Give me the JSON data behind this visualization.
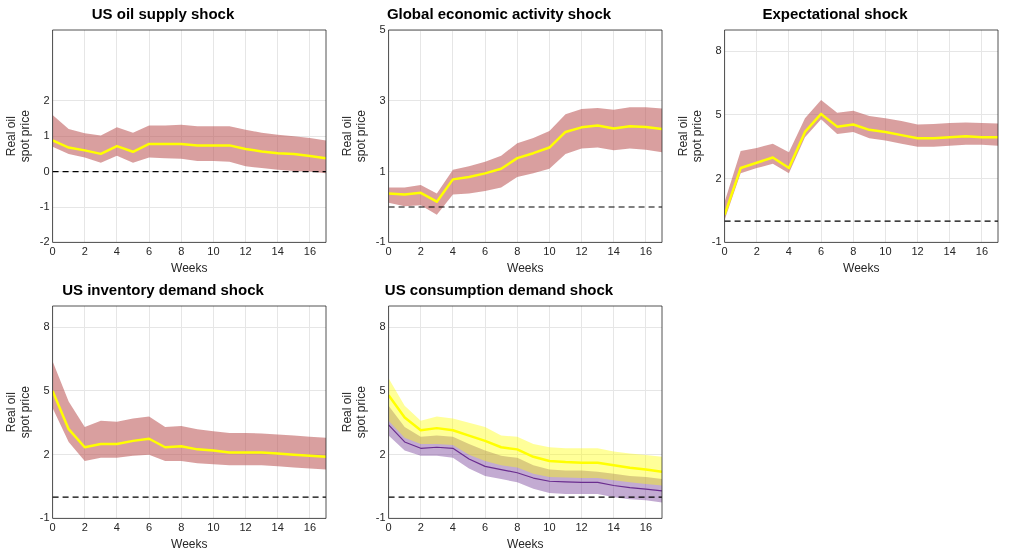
{
  "chart_data": [
    {
      "type": "line",
      "title": "US oil supply shock",
      "xlabel": "Weeks",
      "ylabel": "Real oil\nspot price",
      "x": [
        0,
        1,
        2,
        3,
        4,
        5,
        6,
        7,
        8,
        9,
        10,
        11,
        12,
        13,
        14,
        15,
        16,
        17
      ],
      "xlim": [
        0,
        17
      ],
      "xticks": [
        0,
        2,
        4,
        6,
        8,
        10,
        12,
        14,
        16
      ],
      "ylim": [
        -2,
        4
      ],
      "yticks": [
        -2,
        -1,
        0,
        1,
        2
      ],
      "grid": true,
      "marker": "none",
      "ref_lines": [
        {
          "axis": "y",
          "value": 0,
          "line_style": "dashed",
          "color": "#000000"
        }
      ],
      "series": [
        {
          "color": "#ffff00",
          "values": [
            0.88,
            0.68,
            0.6,
            0.5,
            0.72,
            0.56,
            0.78,
            0.78,
            0.78,
            0.74,
            0.74,
            0.74,
            0.64,
            0.57,
            0.52,
            0.5,
            0.44,
            0.38
          ],
          "lower": [
            0.7,
            0.5,
            0.4,
            0.25,
            0.45,
            0.25,
            0.4,
            0.38,
            0.36,
            0.3,
            0.3,
            0.28,
            0.15,
            0.1,
            0.05,
            0.02,
            0.0,
            -0.05
          ],
          "upper": [
            1.6,
            1.2,
            1.08,
            1.02,
            1.25,
            1.1,
            1.3,
            1.3,
            1.32,
            1.28,
            1.28,
            1.28,
            1.18,
            1.1,
            1.04,
            1.0,
            0.95,
            0.88
          ]
        }
      ]
    },
    {
      "type": "line",
      "title": "Global economic activity shock",
      "xlabel": "Weeks",
      "ylabel": "Real oil\nspot price",
      "x": [
        0,
        1,
        2,
        3,
        4,
        5,
        6,
        7,
        8,
        9,
        10,
        11,
        12,
        13,
        14,
        15,
        16,
        17
      ],
      "xlim": [
        0,
        17
      ],
      "xticks": [
        0,
        2,
        4,
        6,
        8,
        10,
        12,
        14,
        16
      ],
      "ylim": [
        -1,
        5
      ],
      "yticks": [
        -1,
        1,
        3,
        5
      ],
      "grid": true,
      "marker": "none",
      "ref_lines": [
        {
          "axis": "y",
          "value": 0,
          "line_style": "dashed",
          "color": "#000000"
        }
      ],
      "series": [
        {
          "color": "#ffff00",
          "values": [
            0.38,
            0.35,
            0.4,
            0.15,
            0.78,
            0.85,
            0.95,
            1.08,
            1.38,
            1.52,
            1.68,
            2.12,
            2.25,
            2.3,
            2.22,
            2.28,
            2.26,
            2.2
          ],
          "lower": [
            0.12,
            0.02,
            0.05,
            -0.22,
            0.35,
            0.38,
            0.45,
            0.55,
            0.85,
            0.95,
            1.08,
            1.5,
            1.65,
            1.68,
            1.6,
            1.65,
            1.62,
            1.55
          ],
          "upper": [
            0.55,
            0.55,
            0.62,
            0.38,
            1.05,
            1.15,
            1.28,
            1.45,
            1.8,
            1.95,
            2.15,
            2.62,
            2.77,
            2.8,
            2.75,
            2.82,
            2.82,
            2.78
          ]
        }
      ]
    },
    {
      "type": "line",
      "title": "Expectational shock",
      "xlabel": "Weeks",
      "ylabel": "Real oil\nspot price",
      "x": [
        0,
        1,
        2,
        3,
        4,
        5,
        6,
        7,
        8,
        9,
        10,
        11,
        12,
        13,
        14,
        15,
        16,
        17
      ],
      "xlim": [
        0,
        17
      ],
      "xticks": [
        0,
        2,
        4,
        6,
        8,
        10,
        12,
        14,
        16
      ],
      "ylim": [
        -1,
        9
      ],
      "yticks": [
        -1,
        2,
        5,
        8
      ],
      "grid": true,
      "marker": "none",
      "ref_lines": [
        {
          "axis": "y",
          "value": 0,
          "line_style": "dashed",
          "color": "#000000"
        }
      ],
      "series": [
        {
          "color": "#ffff00",
          "values": [
            0.3,
            2.5,
            2.75,
            3.0,
            2.5,
            4.2,
            5.05,
            4.45,
            4.55,
            4.3,
            4.2,
            4.05,
            3.9,
            3.9,
            3.95,
            4.0,
            3.95,
            3.95
          ],
          "lower": [
            0.05,
            2.25,
            2.5,
            2.7,
            2.25,
            3.95,
            4.8,
            4.1,
            4.2,
            3.9,
            3.8,
            3.65,
            3.5,
            3.5,
            3.55,
            3.6,
            3.6,
            3.55
          ],
          "upper": [
            0.9,
            3.3,
            3.45,
            3.65,
            3.25,
            4.85,
            5.7,
            5.1,
            5.2,
            4.95,
            4.85,
            4.72,
            4.55,
            4.58,
            4.62,
            4.65,
            4.62,
            4.6
          ]
        }
      ]
    },
    {
      "type": "line",
      "title": "US inventory demand shock",
      "xlabel": "Weeks",
      "ylabel": "Real oil\nspot price",
      "x": [
        0,
        1,
        2,
        3,
        4,
        5,
        6,
        7,
        8,
        9,
        10,
        11,
        12,
        13,
        14,
        15,
        16,
        17
      ],
      "xlim": [
        0,
        17
      ],
      "xticks": [
        0,
        2,
        4,
        6,
        8,
        10,
        12,
        14,
        16
      ],
      "ylim": [
        -1,
        9
      ],
      "yticks": [
        -1,
        2,
        5,
        8
      ],
      "grid": true,
      "marker": "none",
      "ref_lines": [
        {
          "axis": "y",
          "value": 0,
          "line_style": "dashed",
          "color": "#000000"
        }
      ],
      "series": [
        {
          "color": "#ffff00",
          "values": [
            5.0,
            3.2,
            2.35,
            2.5,
            2.5,
            2.65,
            2.75,
            2.35,
            2.4,
            2.25,
            2.2,
            2.1,
            2.1,
            2.1,
            2.05,
            2.0,
            1.95,
            1.9
          ],
          "lower": [
            4.2,
            2.6,
            1.7,
            1.85,
            1.85,
            1.95,
            2.0,
            1.7,
            1.7,
            1.6,
            1.55,
            1.5,
            1.5,
            1.5,
            1.45,
            1.4,
            1.35,
            1.3
          ],
          "upper": [
            6.4,
            4.5,
            3.3,
            3.6,
            3.55,
            3.7,
            3.8,
            3.3,
            3.35,
            3.2,
            3.1,
            3.02,
            3.02,
            3.0,
            2.95,
            2.9,
            2.85,
            2.8
          ]
        }
      ]
    },
    {
      "type": "line",
      "title": "US consumption demand shock",
      "xlabel": "Weeks",
      "ylabel": "Real oil\nspot price",
      "x": [
        0,
        1,
        2,
        3,
        4,
        5,
        6,
        7,
        8,
        9,
        10,
        11,
        12,
        13,
        14,
        15,
        16,
        17
      ],
      "xlim": [
        0,
        17
      ],
      "xticks": [
        0,
        2,
        4,
        6,
        8,
        10,
        12,
        14,
        16
      ],
      "ylim": [
        -1,
        9
      ],
      "yticks": [
        -1,
        2,
        5,
        8
      ],
      "grid": true,
      "marker": "none",
      "ref_lines": [
        {
          "axis": "y",
          "value": 0,
          "line_style": "dashed",
          "color": "#000000"
        }
      ],
      "series": [
        {
          "color": "#ffff00",
          "values": [
            4.8,
            3.75,
            3.15,
            3.25,
            3.15,
            2.9,
            2.65,
            2.35,
            2.25,
            1.9,
            1.7,
            1.65,
            1.62,
            1.62,
            1.5,
            1.38,
            1.3,
            1.2
          ],
          "lower": [
            3.6,
            2.8,
            2.5,
            2.5,
            2.45,
            2.0,
            1.7,
            1.5,
            1.4,
            1.1,
            0.95,
            0.92,
            0.9,
            0.9,
            0.8,
            0.7,
            0.62,
            0.55
          ],
          "upper": [
            5.6,
            4.3,
            3.6,
            3.8,
            3.7,
            3.5,
            3.3,
            2.9,
            2.85,
            2.5,
            2.35,
            2.3,
            2.3,
            2.3,
            2.15,
            2.05,
            1.98,
            1.9
          ]
        },
        {
          "color": "#6a2d8f",
          "values": [
            3.4,
            2.6,
            2.3,
            2.35,
            2.3,
            1.8,
            1.45,
            1.3,
            1.15,
            0.9,
            0.75,
            0.72,
            0.7,
            0.7,
            0.55,
            0.45,
            0.38,
            0.3
          ],
          "lower": [
            2.9,
            2.2,
            1.95,
            1.95,
            1.85,
            1.35,
            1.0,
            0.85,
            0.7,
            0.4,
            0.2,
            0.15,
            0.15,
            0.15,
            0.0,
            -0.1,
            -0.15,
            -0.25
          ],
          "upper": [
            4.3,
            3.3,
            2.85,
            2.9,
            2.85,
            2.5,
            2.2,
            1.95,
            1.85,
            1.5,
            1.3,
            1.25,
            1.25,
            1.2,
            1.1,
            1.0,
            0.95,
            0.85
          ]
        }
      ]
    }
  ]
}
